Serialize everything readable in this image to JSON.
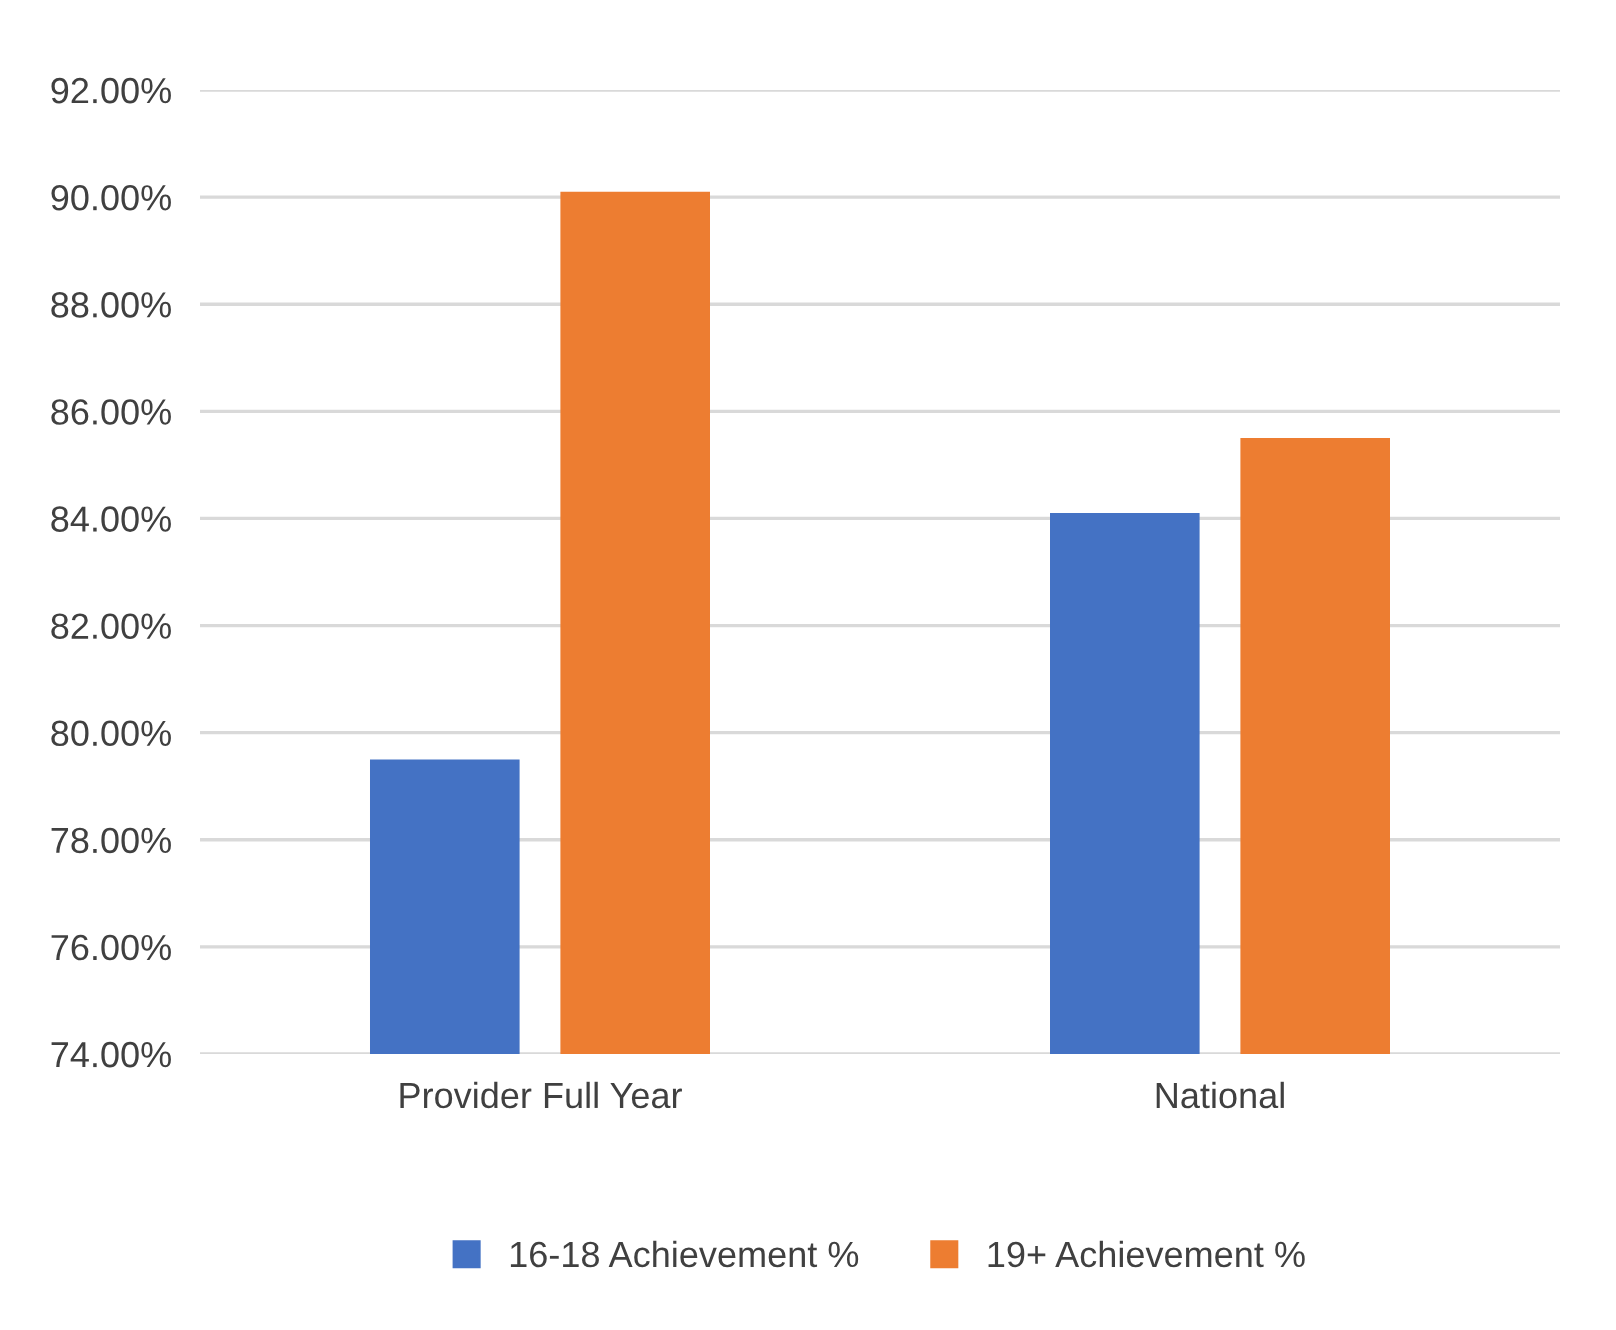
{
  "chart_data": {
    "type": "bar",
    "categories": [
      "Provider Full Year",
      "National"
    ],
    "series": [
      {
        "name": "16-18 Achievement %",
        "color": "#4472c4",
        "values": [
          79.5,
          84.1
        ]
      },
      {
        "name": "19+ Achievement %",
        "color": "#ed7d31",
        "values": [
          90.1,
          85.5
        ]
      }
    ],
    "ylim": [
      74,
      92
    ],
    "yticks": [
      {
        "value": 74,
        "label": "74.00%"
      },
      {
        "value": 76,
        "label": "76.00%"
      },
      {
        "value": 78,
        "label": "78.00%"
      },
      {
        "value": 80,
        "label": "80.00%"
      },
      {
        "value": 82,
        "label": "82.00%"
      },
      {
        "value": 84,
        "label": "84.00%"
      },
      {
        "value": 86,
        "label": "86.00%"
      },
      {
        "value": 88,
        "label": "88.00%"
      },
      {
        "value": 90,
        "label": "90.00%"
      },
      {
        "value": 92,
        "label": "92.00%"
      }
    ],
    "grid": "y",
    "legend": "bottom"
  }
}
